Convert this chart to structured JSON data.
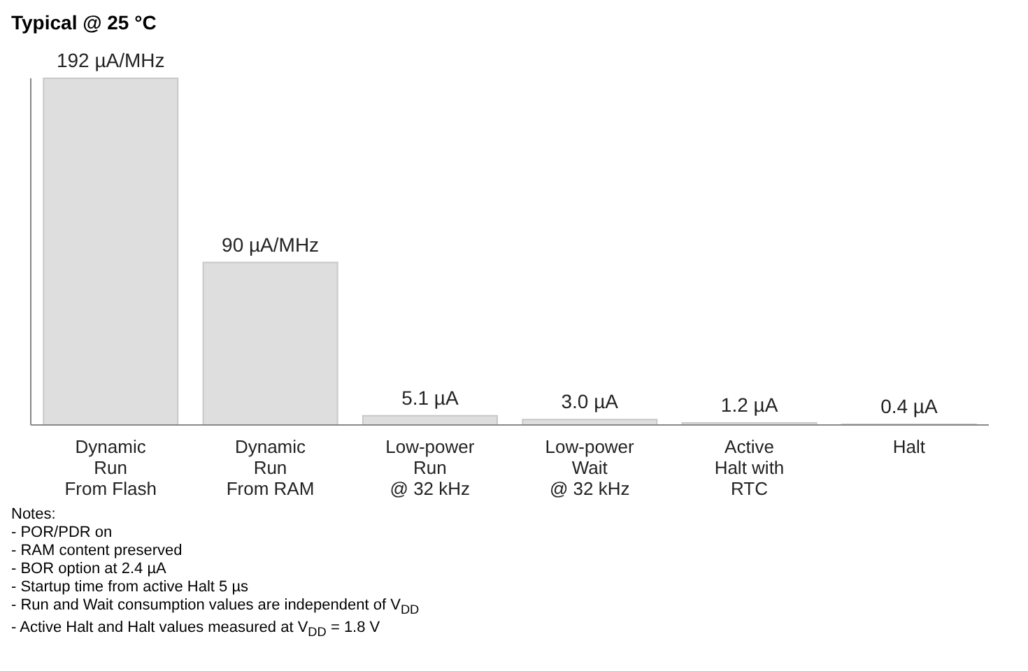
{
  "chart_data": {
    "type": "bar",
    "title": "Typical @ 25 °C",
    "categories": [
      "Dynamic\nRun\nFrom Flash",
      "Dynamic\nRun\nFrom RAM",
      "Low-power\nRun\n@ 32 kHz",
      "Low-power\nWait\n@ 32 kHz",
      "Active\nHalt with\nRTC",
      "Halt"
    ],
    "values": [
      192,
      90,
      5.1,
      3.0,
      1.2,
      0.4
    ],
    "value_labels": [
      "192 µA/MHz",
      "90 µA/MHz",
      "5.1 µA",
      "3.0 µA",
      "1.2 µA",
      "0.4 µA"
    ],
    "color": "#dedede",
    "annotations": [
      "Notes:",
      "- POR/PDR on",
      "- RAM content preserved",
      "- BOR option at 2.4 µA",
      "- Startup time from active Halt 5 µs",
      "- Run and Wait consumption values are independent of V$_{DD}$",
      "- Active Halt and Halt values measured at V$_{DD}$ = 1.8 V"
    ]
  }
}
